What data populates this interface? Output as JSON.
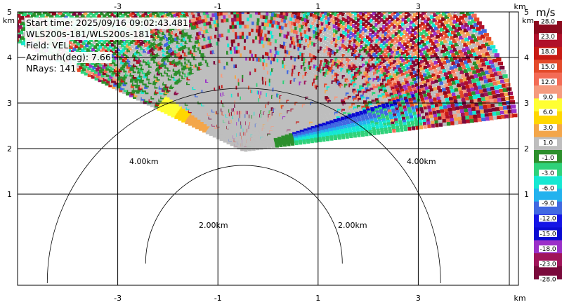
{
  "info": {
    "start_time": "Start time: 2025/09/16 09:02:43.481",
    "instrument": "WLS200s-181/WLS200s-181",
    "field": "Field: VEL",
    "azimuth": "Azimuth(deg): 7.66",
    "nrays": "NRays: 141"
  },
  "chart_data": {
    "type": "heatmap",
    "title": "",
    "xlabel": "km",
    "ylabel": "km",
    "xlim": [
      -5.0,
      5.0
    ],
    "ylim": [
      -1.0,
      5.0
    ],
    "x_ticks": [
      -3,
      -1,
      1,
      3
    ],
    "y_ticks": [
      1,
      2,
      3,
      4,
      5
    ],
    "grid": true,
    "colorbar": {
      "unit": "m/s",
      "labels": [
        "28.0",
        "23.0",
        "18.0",
        "15.0",
        "12.0",
        "9.0",
        "6.0",
        "3.0",
        "1.0",
        "-1.0",
        "-3.0",
        "-6.0",
        "-9.0",
        "-12.0",
        "-15.0",
        "-18.0",
        "-23.0",
        "-28.0"
      ],
      "colors": [
        "#8c0a1e",
        "#b0102a",
        "#c81a14",
        "#e34a2a",
        "#f36b55",
        "#f59a7e",
        "#ffff33",
        "#ffd700",
        "#f3a64a",
        "#bebebe",
        "#2c8f2c",
        "#2fd27a",
        "#16e8d2",
        "#23b2ee",
        "#4169e1",
        "#1414e6",
        "#0a0ad2",
        "#9b30c8",
        "#a0145a",
        "#7a0a3c"
      ]
    },
    "range_rings": [
      {
        "radius_km": 2.0,
        "label": "2.00km"
      },
      {
        "radius_km": 4.0,
        "label": "4.00km"
      }
    ],
    "sector": {
      "origin_km": [
        -0.48,
        1.97
      ],
      "azimuth_start_deg": -62,
      "azimuth_end_deg": 82,
      "max_range_km": 5.5
    }
  }
}
